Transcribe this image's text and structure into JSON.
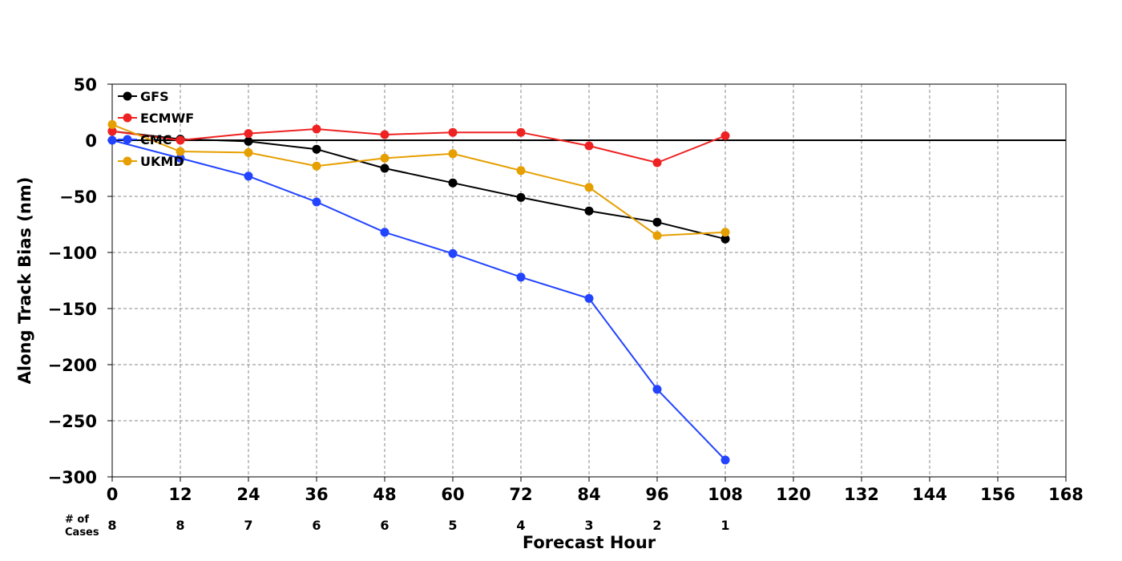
{
  "chart_data": {
    "type": "line",
    "xlabel": "Forecast Hour",
    "ylabel": "Along Track Bias (nm)",
    "xlim": [
      0,
      168
    ],
    "ylim": [
      -300,
      50
    ],
    "x_ticks": [
      0,
      12,
      24,
      36,
      48,
      60,
      72,
      84,
      96,
      108,
      120,
      132,
      144,
      156,
      168
    ],
    "x_tick_labels": [
      "0",
      "12",
      "24",
      "36",
      "48",
      "60",
      "72",
      "84",
      "96",
      "108",
      "120",
      "132",
      "144",
      "156",
      "168"
    ],
    "y_ticks": [
      50,
      0,
      -50,
      -100,
      -150,
      -200,
      -250,
      -300
    ],
    "y_tick_labels": [
      "50",
      "0",
      "−50",
      "−100",
      "−150",
      "−200",
      "−250",
      "−300"
    ],
    "grid": true,
    "zero_line": true,
    "legend_position": "top-left",
    "x": [
      0,
      12,
      24,
      36,
      48,
      60,
      72,
      84,
      96,
      108
    ],
    "series": [
      {
        "name": "GFS",
        "color": "#000000",
        "values": [
          8,
          1,
          -1,
          -8,
          -25,
          -38,
          -51,
          -63,
          -73,
          -88
        ]
      },
      {
        "name": "ECMWF",
        "color": "#ee2222",
        "values": [
          8,
          0,
          6,
          10,
          5,
          7,
          7,
          -5,
          -20,
          4
        ]
      },
      {
        "name": "CMC",
        "color": "#2244ff",
        "values": [
          0,
          -16,
          -32,
          -55,
          -82,
          -101,
          -122,
          -141,
          -222,
          -285
        ]
      },
      {
        "name": "UKMD",
        "color": "#e69f00",
        "values": [
          14,
          -10,
          -11,
          -23,
          -16,
          -12,
          -27,
          -42,
          -85,
          -82
        ]
      }
    ],
    "cases": {
      "label_line1": "# of",
      "label_line2": "Cases",
      "x": [
        0,
        12,
        24,
        36,
        48,
        60,
        72,
        84,
        96,
        108
      ],
      "values": [
        "8",
        "8",
        "7",
        "6",
        "6",
        "5",
        "4",
        "3",
        "2",
        "1"
      ]
    }
  }
}
